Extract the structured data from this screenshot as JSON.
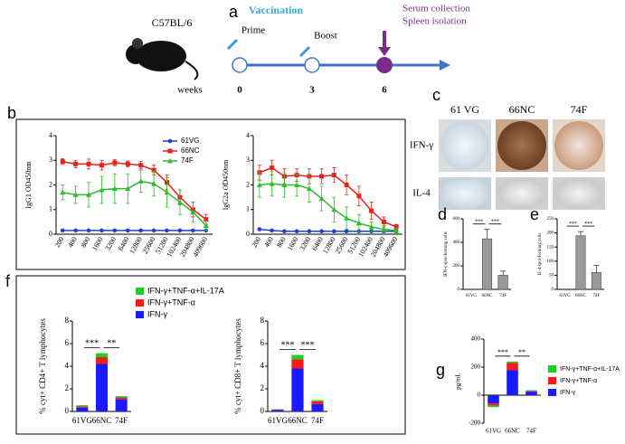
{
  "figure": {
    "letters": [
      "a",
      "b",
      "c",
      "d",
      "e",
      "f",
      "g"
    ],
    "timeline": {
      "strain": "C57BL/6",
      "phase": "Vaccination",
      "prime": "Prime",
      "boost": "Boost",
      "collection": [
        "Serum collection",
        "Spleen isolation"
      ],
      "weeks_label": "weeks",
      "weeks": [
        0,
        3,
        6
      ]
    },
    "elispot": {
      "columns": [
        "61 VG",
        "66NC",
        "74F"
      ],
      "rows": [
        "IFN-γ",
        "IL-4"
      ]
    }
  },
  "chart_data": [
    {
      "type": "line",
      "ylabel": "IgG1 OD450nm",
      "categories": [
        "200",
        "400",
        "800",
        "1600",
        "3200",
        "6400",
        "12800",
        "25600",
        "51200",
        "102400",
        "204800",
        "409600"
      ],
      "ylim": [
        0,
        4
      ],
      "yticks": [
        0,
        1,
        2,
        3,
        4
      ],
      "legend": "upper right",
      "series": [
        {
          "name": "61VG",
          "color": "#1f3fd6",
          "marker": "circle",
          "values": [
            0.15,
            0.15,
            0.15,
            0.15,
            0.15,
            0.15,
            0.15,
            0.15,
            0.15,
            0.15,
            0.15,
            0.15
          ]
        },
        {
          "name": "66NC",
          "color": "#e8211c",
          "marker": "square",
          "values": [
            2.95,
            2.85,
            2.85,
            2.8,
            2.9,
            2.85,
            2.8,
            2.6,
            2.1,
            1.5,
            1.0,
            0.6
          ],
          "errors": [
            0.12,
            0.15,
            0.2,
            0.2,
            0.12,
            0.12,
            0.15,
            0.2,
            0.3,
            0.3,
            0.3,
            0.2
          ]
        },
        {
          "name": "74F",
          "color": "#2bbd2b",
          "marker": "triangle",
          "values": [
            1.7,
            1.6,
            1.6,
            1.8,
            1.85,
            1.85,
            2.15,
            2.05,
            1.7,
            1.3,
            0.9,
            0.35
          ],
          "errors": [
            0.3,
            0.35,
            0.5,
            0.55,
            0.6,
            0.6,
            0.45,
            0.5,
            0.6,
            0.5,
            0.4,
            0.2
          ]
        }
      ]
    },
    {
      "type": "line",
      "ylabel": "IgG2a OD450nm",
      "categories": [
        "200",
        "400",
        "800",
        "1600",
        "3200",
        "6400",
        "12800",
        "25600",
        "51200",
        "102400",
        "204800",
        "409600"
      ],
      "ylim": [
        0,
        4
      ],
      "yticks": [
        0,
        1,
        2,
        3,
        4
      ],
      "series": [
        {
          "color": "#1f3fd6",
          "marker": "circle",
          "values": [
            0.2,
            0.15,
            0.12,
            0.12,
            0.12,
            0.12,
            0.12,
            0.12,
            0.12,
            0.12,
            0.12,
            0.12
          ]
        },
        {
          "color": "#e8211c",
          "marker": "square",
          "values": [
            2.5,
            2.7,
            2.35,
            2.4,
            2.35,
            2.35,
            2.4,
            2.0,
            1.55,
            0.95,
            0.5,
            0.3
          ],
          "errors": [
            0.3,
            0.3,
            0.3,
            0.25,
            0.3,
            0.3,
            0.3,
            0.4,
            0.4,
            0.35,
            0.2,
            0.1
          ]
        },
        {
          "color": "#2bbd2b",
          "marker": "triangle",
          "values": [
            2.0,
            2.05,
            2.0,
            2.0,
            1.85,
            1.45,
            1.0,
            0.65,
            0.45,
            0.3,
            0.2,
            0.15
          ],
          "errors": [
            0.5,
            0.5,
            0.5,
            0.45,
            0.55,
            0.5,
            0.5,
            0.45,
            0.35,
            0.2,
            0.15,
            0.1
          ]
        }
      ]
    },
    {
      "type": "bar",
      "ylabel": "IFN-γ spot-forming cells",
      "categories": [
        "61VG",
        "66NC",
        "74F"
      ],
      "values": [
        0,
        430,
        120
      ],
      "errors": [
        0,
        80,
        35
      ],
      "color": "#9a9a9a",
      "ylim": [
        0,
        600
      ],
      "yticks": [
        0,
        200,
        400,
        600
      ],
      "pairs": [
        [
          0,
          1
        ],
        [
          1,
          2
        ]
      ],
      "annotations": [
        "***",
        "***"
      ]
    },
    {
      "type": "bar",
      "ylabel": "IL-4 spot-forming cells",
      "categories": [
        "61VG",
        "66NC",
        "74F"
      ],
      "values": [
        0,
        190,
        60
      ],
      "errors": [
        0,
        15,
        25
      ],
      "color": "#9a9a9a",
      "ylim": [
        0,
        250
      ],
      "yticks": [
        0,
        50,
        100,
        150,
        200,
        250
      ],
      "pairs": [
        [
          0,
          1
        ],
        [
          1,
          2
        ]
      ],
      "annotations": [
        "***",
        "***"
      ]
    },
    {
      "type": "stacked_bar",
      "ylabel": "% cyt+ CD4+ T lymphocytes",
      "categories": [
        "61VG",
        "66NC",
        "74F"
      ],
      "ylim": [
        0,
        8
      ],
      "yticks": [
        0,
        2,
        4,
        6,
        8
      ],
      "legend": "upper right",
      "pairs": [
        [
          0,
          1
        ],
        [
          1,
          2
        ]
      ],
      "annotations": [
        "***",
        "**"
      ],
      "series": [
        {
          "name": "IFN-γ",
          "color": "#1a1aff",
          "values": [
            0.35,
            4.2,
            1.1
          ]
        },
        {
          "name": "IFN-γ+TNF-α",
          "color": "#ff1a1a",
          "values": [
            0.1,
            0.6,
            0.15
          ]
        },
        {
          "name": "IFN-γ+TNF-α+IL-17A",
          "color": "#22cc22",
          "values": [
            0.1,
            0.35,
            0.1
          ]
        }
      ]
    },
    {
      "type": "stacked_bar",
      "ylabel": "% cyt+ CD8+ T lymphocytes",
      "categories": [
        "61VG",
        "66NC",
        "74F"
      ],
      "ylim": [
        0,
        8
      ],
      "yticks": [
        0,
        2,
        4,
        6,
        8
      ],
      "pairs": [
        [
          0,
          1
        ],
        [
          1,
          2
        ]
      ],
      "annotations": [
        "***",
        "***"
      ],
      "series": [
        {
          "color": "#1a1aff",
          "values": [
            0.15,
            3.8,
            0.65
          ]
        },
        {
          "color": "#ff1a1a",
          "values": [
            0.03,
            0.8,
            0.25
          ]
        },
        {
          "color": "#22cc22",
          "values": [
            0.02,
            0.4,
            0.1
          ]
        }
      ]
    },
    {
      "type": "stacked_bar",
      "ylabel": "pg/mL",
      "categories": [
        "61VG",
        "66NC",
        "74F"
      ],
      "ylim": [
        -200,
        400
      ],
      "yticks": [
        -200,
        0,
        200,
        400
      ],
      "legend": "right",
      "pairs": [
        [
          0,
          1
        ],
        [
          1,
          2
        ]
      ],
      "annotations": [
        "***",
        "**"
      ],
      "series": [
        {
          "name": "IFN-γ",
          "color": "#1a1aff",
          "values": [
            -60,
            180,
            25
          ]
        },
        {
          "name": "IFN-γ+TNF-α",
          "color": "#ff1a1a",
          "values": [
            -15,
            50,
            5
          ]
        },
        {
          "name": "IFN-γ+TNF-α+IL-17A",
          "color": "#22cc22",
          "values": [
            -10,
            10,
            5
          ]
        }
      ]
    }
  ]
}
